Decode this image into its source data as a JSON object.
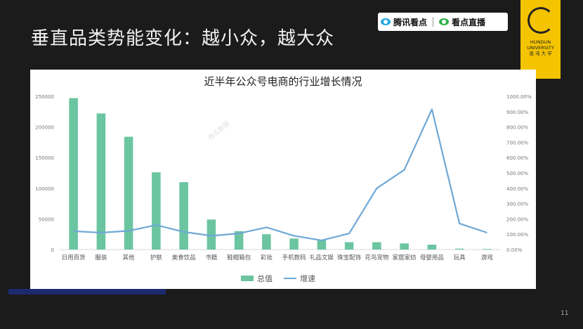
{
  "slide": {
    "title": "垂直品类势能变化：越小众，越大众",
    "page_number": "11"
  },
  "badges": {
    "left": "腾讯看点",
    "right": "看点直播"
  },
  "logo": {
    "line1": "HUNDUN",
    "line2": "UNIVERSITY",
    "line3": "混 沌 大 学"
  },
  "watermark": "西瓜数据",
  "chart_data": {
    "type": "bar",
    "title": "近半年公众号电商的行业增长情况",
    "categories": [
      "日用百货",
      "服装",
      "其他",
      "护肤",
      "美食饮品",
      "书籍",
      "鞋帽箱包",
      "彩妆",
      "手机数码",
      "礼品文娱",
      "珠宝配饰",
      "花鸟宠物",
      "家居家纺",
      "母婴用品",
      "玩具",
      "游戏"
    ],
    "series": [
      {
        "name": "总值",
        "type": "bar",
        "axis": "left",
        "color": "#6bc5a0",
        "values": [
          247000,
          222000,
          184000,
          126000,
          110000,
          49000,
          30000,
          25000,
          18000,
          16000,
          12000,
          12000,
          10000,
          8000,
          1500,
          1000
        ]
      },
      {
        "name": "增速",
        "type": "line",
        "axis": "right",
        "color": "#6fa8d6",
        "values": [
          1.2,
          1.1,
          1.22,
          1.6,
          1.15,
          0.9,
          1.05,
          1.45,
          0.9,
          0.6,
          1.05,
          4.0,
          5.2,
          9.15,
          1.7,
          1.1
        ]
      }
    ],
    "y_left": {
      "min": 0,
      "max": 250000,
      "ticks": [
        "0",
        "50000",
        "100000",
        "150000",
        "200000",
        "250000"
      ]
    },
    "y_right": {
      "min": 0,
      "max": 10,
      "ticks": [
        "0.00%",
        "100.00%",
        "200.00%",
        "300.00%",
        "400.00%",
        "500.00%",
        "600.00%",
        "700.00%",
        "800.00%",
        "900.00%",
        "1000.00%"
      ]
    },
    "grid": false,
    "legend_position": "bottom"
  }
}
